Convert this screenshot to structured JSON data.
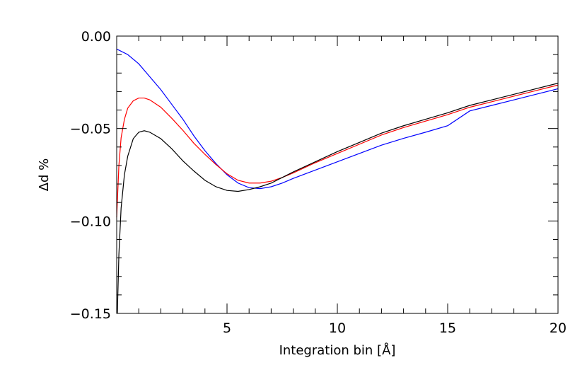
{
  "chart_data": {
    "type": "line",
    "title": "",
    "xlabel": "Integration bin [Å]",
    "ylabel": "Δd %",
    "xlim": [
      0,
      20
    ],
    "ylim": [
      -0.15,
      0.0
    ],
    "x_ticks": [
      {
        "value": 5,
        "label": "5"
      },
      {
        "value": 10,
        "label": "10"
      },
      {
        "value": 15,
        "label": "15"
      },
      {
        "value": 20,
        "label": "20"
      }
    ],
    "y_ticks": [
      {
        "value": 0.0,
        "label": "0.00"
      },
      {
        "value": -0.05,
        "label": "−0.05"
      },
      {
        "value": -0.1,
        "label": "−0.10"
      },
      {
        "value": -0.15,
        "label": "−0.15"
      }
    ],
    "x_minor_step": 1,
    "y_minor_step": 0.01,
    "grid": false,
    "legend": "none",
    "series": [
      {
        "color": "#0000ff",
        "points": [
          [
            0.0,
            -0.007
          ],
          [
            0.5,
            -0.01
          ],
          [
            1.0,
            -0.015
          ],
          [
            1.5,
            -0.022
          ],
          [
            2.0,
            -0.029
          ],
          [
            2.5,
            -0.037
          ],
          [
            3.0,
            -0.045
          ],
          [
            3.5,
            -0.054
          ],
          [
            4.0,
            -0.062
          ],
          [
            4.5,
            -0.069
          ],
          [
            5.0,
            -0.075
          ],
          [
            5.5,
            -0.0795
          ],
          [
            6.0,
            -0.082
          ],
          [
            6.5,
            -0.0825
          ],
          [
            7.0,
            -0.0815
          ],
          [
            7.5,
            -0.0795
          ],
          [
            8.0,
            -0.077
          ],
          [
            9.0,
            -0.0725
          ],
          [
            10.0,
            -0.068
          ],
          [
            11.0,
            -0.0635
          ],
          [
            12.0,
            -0.059
          ],
          [
            13.0,
            -0.0553
          ],
          [
            14.0,
            -0.052
          ],
          [
            15.0,
            -0.0485
          ],
          [
            16.0,
            -0.0405
          ],
          [
            17.0,
            -0.0375
          ],
          [
            18.0,
            -0.0345
          ],
          [
            19.0,
            -0.0315
          ],
          [
            20.0,
            -0.0285
          ]
        ]
      },
      {
        "color": "#ff0000",
        "points": [
          [
            0.0,
            -0.098
          ],
          [
            0.1,
            -0.07
          ],
          [
            0.2,
            -0.055
          ],
          [
            0.35,
            -0.045
          ],
          [
            0.5,
            -0.039
          ],
          [
            0.75,
            -0.035
          ],
          [
            1.0,
            -0.0335
          ],
          [
            1.25,
            -0.0335
          ],
          [
            1.5,
            -0.0345
          ],
          [
            2.0,
            -0.0385
          ],
          [
            2.5,
            -0.0445
          ],
          [
            3.0,
            -0.051
          ],
          [
            3.5,
            -0.058
          ],
          [
            4.0,
            -0.064
          ],
          [
            4.5,
            -0.0695
          ],
          [
            5.0,
            -0.0745
          ],
          [
            5.5,
            -0.078
          ],
          [
            6.0,
            -0.0795
          ],
          [
            6.5,
            -0.0795
          ],
          [
            7.0,
            -0.0785
          ],
          [
            7.5,
            -0.0765
          ],
          [
            8.0,
            -0.074
          ],
          [
            9.0,
            -0.0685
          ],
          [
            10.0,
            -0.0635
          ],
          [
            11.0,
            -0.0585
          ],
          [
            12.0,
            -0.0535
          ],
          [
            13.0,
            -0.0495
          ],
          [
            14.0,
            -0.046
          ],
          [
            15.0,
            -0.0425
          ],
          [
            16.0,
            -0.0385
          ],
          [
            17.0,
            -0.0355
          ],
          [
            18.0,
            -0.0325
          ],
          [
            19.0,
            -0.0295
          ],
          [
            20.0,
            -0.0265
          ]
        ]
      },
      {
        "color": "#000000",
        "points": [
          [
            0.03,
            -0.15
          ],
          [
            0.1,
            -0.118
          ],
          [
            0.2,
            -0.093
          ],
          [
            0.35,
            -0.075
          ],
          [
            0.5,
            -0.065
          ],
          [
            0.75,
            -0.0555
          ],
          [
            1.0,
            -0.052
          ],
          [
            1.25,
            -0.0512
          ],
          [
            1.5,
            -0.052
          ],
          [
            2.0,
            -0.0555
          ],
          [
            2.5,
            -0.061
          ],
          [
            3.0,
            -0.0675
          ],
          [
            3.5,
            -0.073
          ],
          [
            4.0,
            -0.078
          ],
          [
            4.5,
            -0.0815
          ],
          [
            5.0,
            -0.0835
          ],
          [
            5.5,
            -0.084
          ],
          [
            6.0,
            -0.083
          ],
          [
            6.5,
            -0.0815
          ],
          [
            7.0,
            -0.0795
          ],
          [
            7.5,
            -0.0765
          ],
          [
            8.0,
            -0.0735
          ],
          [
            9.0,
            -0.068
          ],
          [
            10.0,
            -0.0625
          ],
          [
            11.0,
            -0.0575
          ],
          [
            12.0,
            -0.0525
          ],
          [
            13.0,
            -0.0485
          ],
          [
            14.0,
            -0.045
          ],
          [
            15.0,
            -0.0415
          ],
          [
            16.0,
            -0.0375
          ],
          [
            17.0,
            -0.0345
          ],
          [
            18.0,
            -0.0315
          ],
          [
            19.0,
            -0.0285
          ],
          [
            20.0,
            -0.0255
          ]
        ]
      }
    ]
  }
}
